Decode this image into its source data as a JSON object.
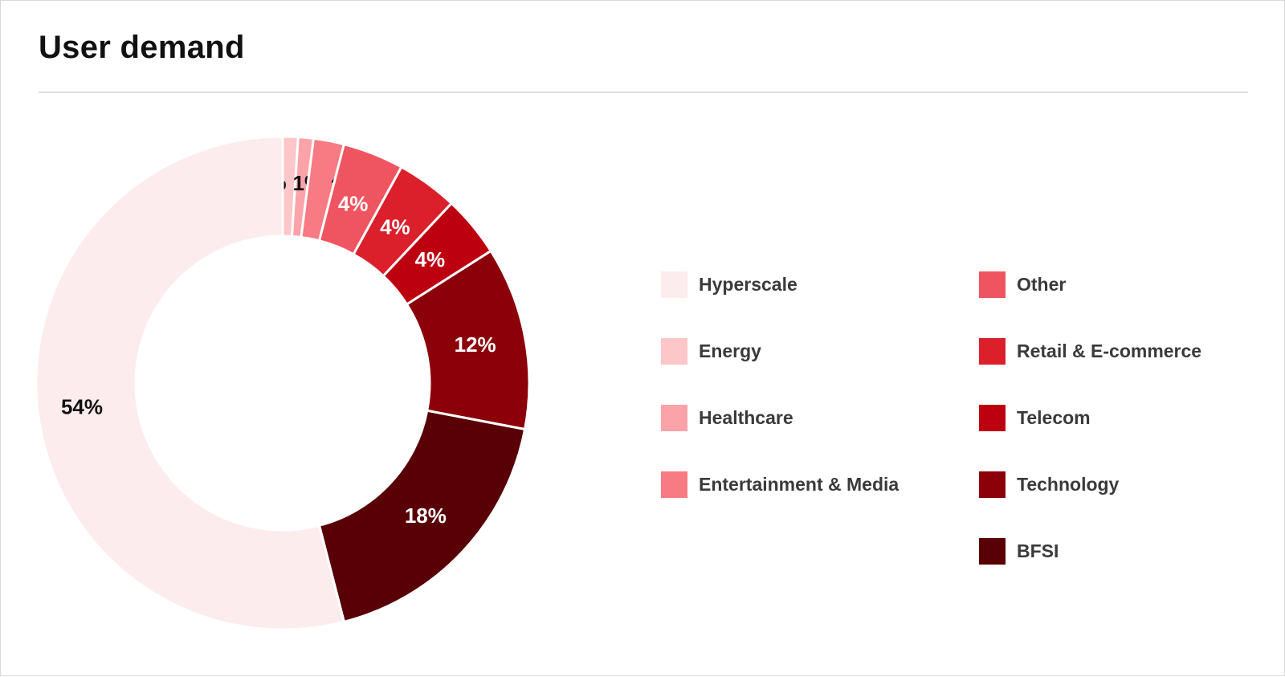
{
  "card": {
    "title": "User demand"
  },
  "chart_data": {
    "type": "pie",
    "style": "donut",
    "title": "User demand",
    "legend_position": "right",
    "unit": "%",
    "slices": [
      {
        "name": "Energy",
        "value": 1,
        "label": "1%",
        "color": "#fdc6c9",
        "label_color": "#111111"
      },
      {
        "name": "Healthcare",
        "value": 1,
        "label": "1%",
        "color": "#fca3a9",
        "label_color": "#111111"
      },
      {
        "name": "Entertainment & Media",
        "value": 2,
        "label": "2%",
        "color": "#f87a82",
        "label_color": "#111111"
      },
      {
        "name": "Other",
        "value": 4,
        "label": "4%",
        "color": "#ef5560",
        "label_color": "#ffffff"
      },
      {
        "name": "Retail & E-commerce",
        "value": 4,
        "label": "4%",
        "color": "#db1f2b",
        "label_color": "#ffffff"
      },
      {
        "name": "Telecom",
        "value": 4,
        "label": "4%",
        "color": "#bd0010",
        "label_color": "#ffffff"
      },
      {
        "name": "Technology",
        "value": 12,
        "label": "12%",
        "color": "#8c0009",
        "label_color": "#ffffff"
      },
      {
        "name": "BFSI",
        "value": 18,
        "label": "18%",
        "color": "#590006",
        "label_color": "#ffffff"
      },
      {
        "name": "Hyperscale",
        "value": 54,
        "label": "54%",
        "color": "#fdeced",
        "label_color": "#111111"
      }
    ]
  },
  "legend": {
    "columns": [
      [
        {
          "label": "Hyperscale",
          "color": "#fdeced"
        },
        {
          "label": "Energy",
          "color": "#fdc6c9"
        },
        {
          "label": "Healthcare",
          "color": "#fca3a9"
        },
        {
          "label": "Entertainment & Media",
          "color": "#f87a82"
        }
      ],
      [
        {
          "label": "Other",
          "color": "#ef5560"
        },
        {
          "label": "Retail & E-commerce",
          "color": "#db1f2b"
        },
        {
          "label": "Telecom",
          "color": "#bd0010"
        },
        {
          "label": "Technology",
          "color": "#8c0009"
        },
        {
          "label": "BFSI",
          "color": "#590006"
        }
      ]
    ]
  }
}
